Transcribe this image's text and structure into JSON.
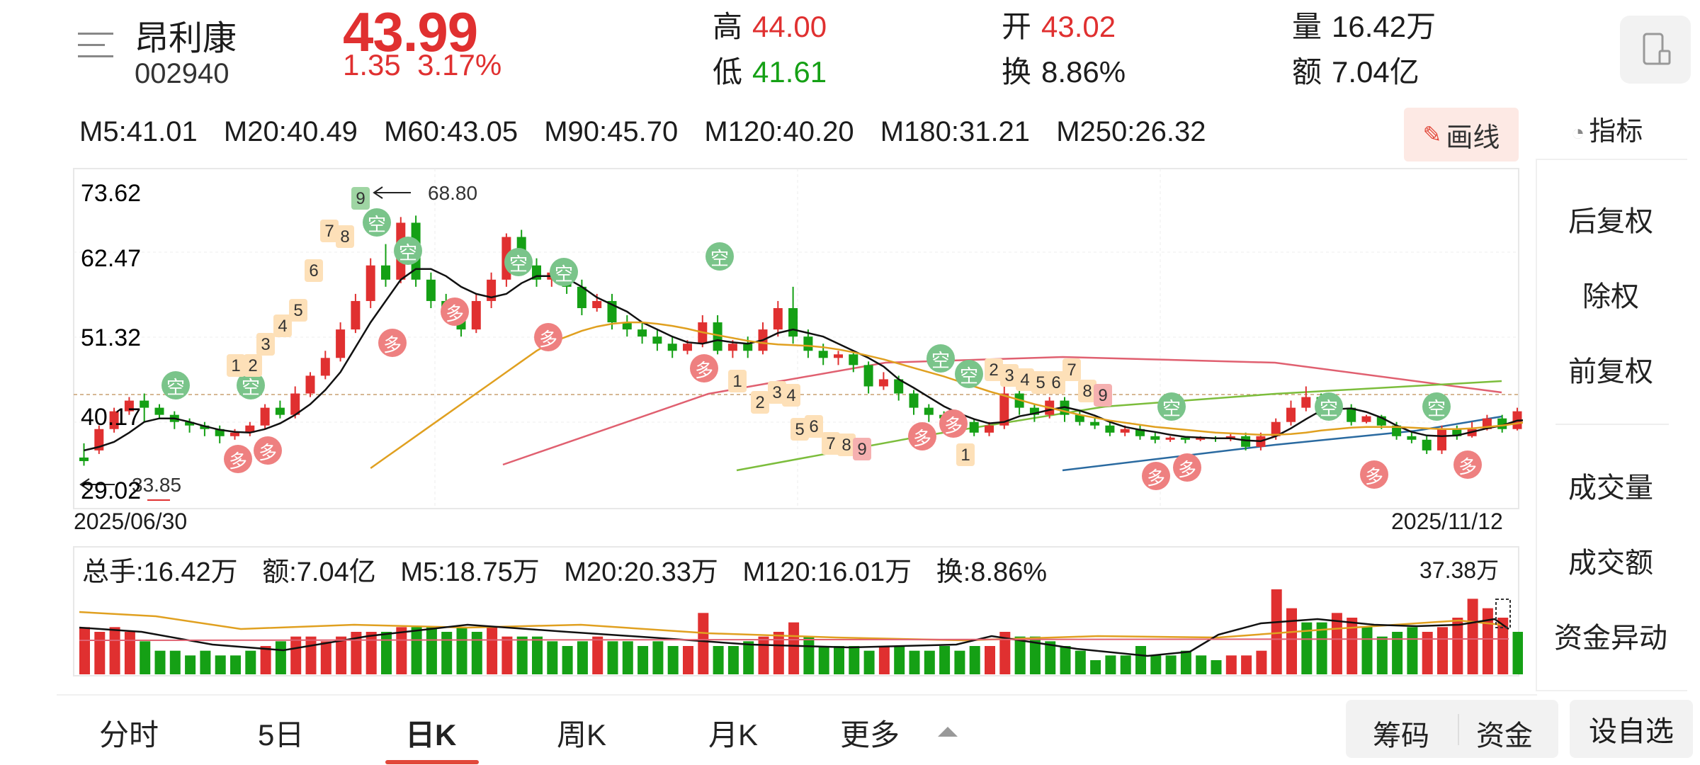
{
  "header": {
    "name": "昂利康",
    "code": "002940",
    "price": "43.99",
    "change": "1.35",
    "change_pct": "3.17%",
    "high_label": "高",
    "high": "44.00",
    "low_label": "低",
    "low": "41.61",
    "open_label": "开",
    "open": "43.02",
    "turnover_label": "换",
    "turnover": "8.86%",
    "volume_label": "量",
    "volume": "16.42万",
    "amount_label": "额",
    "amount": "7.04亿"
  },
  "ma": [
    "M5:41.01",
    "M20:40.49",
    "M60:43.05",
    "M90:45.70",
    "M120:40.20",
    "M180:31.21",
    "M250:26.32"
  ],
  "toolbar": {
    "draw_label": "画线",
    "indicator_label": "指标"
  },
  "side_menu": [
    "后复权",
    "除权",
    "前复权",
    "成交量",
    "成交额",
    "资金异动"
  ],
  "price_axis": [
    "73.62",
    "62.47",
    "51.32",
    "40.17",
    "29.02"
  ],
  "annotations": {
    "high_marker": "68.80",
    "low_marker": "33.85",
    "sell_label": "空",
    "buy_label": "多"
  },
  "dates": {
    "start": "2025/06/30",
    "end": "2025/11/12"
  },
  "volume_panel": {
    "items": [
      "总手:16.42万",
      "额:7.04亿",
      "M5:18.75万",
      "M20:20.33万",
      "M120:16.01万",
      "换:8.86%"
    ],
    "max": "37.38万"
  },
  "tabs": [
    "分时",
    "5日",
    "日K",
    "周K",
    "月K",
    "更多"
  ],
  "active_tab": "日K",
  "bottom_buttons": {
    "chips": "筹码",
    "funds": "资金",
    "watch": "设自选"
  },
  "colors": {
    "up": "#e03030",
    "down": "#15a015",
    "accent": "#e1483a"
  },
  "chart_data": {
    "type": "candlestick",
    "ylim": [
      29.02,
      73.62
    ],
    "candles": [
      [
        35,
        34.5,
        37,
        33.85
      ],
      [
        36,
        39,
        39.5,
        35.5
      ],
      [
        39,
        41.5,
        42,
        38.5
      ],
      [
        41.5,
        43,
        43.5,
        41
      ],
      [
        43,
        42,
        44,
        40
      ],
      [
        42,
        41,
        42.5,
        40.5
      ],
      [
        41,
        40,
        41.5,
        39
      ],
      [
        40,
        39.5,
        40.5,
        38.5
      ],
      [
        39.5,
        39,
        40,
        38
      ],
      [
        39,
        38,
        39.5,
        37
      ],
      [
        38,
        38.5,
        39,
        37.5
      ],
      [
        38.5,
        39.5,
        40,
        38
      ],
      [
        39.5,
        42,
        42.5,
        39
      ],
      [
        42,
        41,
        43,
        40.5
      ],
      [
        41,
        44,
        45,
        40.5
      ],
      [
        44,
        46.5,
        47,
        43.5
      ],
      [
        46.5,
        49,
        50,
        46
      ],
      [
        49,
        53,
        54,
        48.5
      ],
      [
        53,
        57,
        58,
        52.5
      ],
      [
        57,
        62,
        63,
        56
      ],
      [
        62,
        60,
        65,
        59
      ],
      [
        60,
        68,
        68.8,
        59.5
      ],
      [
        68,
        60,
        69,
        59
      ],
      [
        60,
        57,
        61,
        56
      ],
      [
        57,
        56,
        58,
        55
      ],
      [
        56,
        53,
        57,
        52
      ],
      [
        53,
        57,
        58,
        52.5
      ],
      [
        57,
        60,
        61,
        56
      ],
      [
        60,
        66,
        66.5,
        59
      ],
      [
        66,
        62,
        67,
        61
      ],
      [
        62,
        60,
        63,
        59
      ],
      [
        60,
        61,
        61.5,
        59
      ],
      [
        61,
        59,
        62,
        58
      ],
      [
        59,
        56,
        60,
        55
      ],
      [
        56,
        57,
        58,
        55.5
      ],
      [
        57,
        54,
        58,
        53
      ],
      [
        54,
        53,
        55,
        52
      ],
      [
        53,
        52,
        54,
        51
      ],
      [
        52,
        51,
        53,
        50
      ],
      [
        51,
        50,
        52,
        49
      ],
      [
        50,
        51,
        51.5,
        49.5
      ],
      [
        51,
        54,
        55,
        50.5
      ],
      [
        54,
        50,
        55,
        49.5
      ],
      [
        50,
        51,
        51.5,
        49
      ],
      [
        51,
        50,
        52,
        49
      ],
      [
        50,
        53,
        54,
        49.5
      ],
      [
        53,
        56,
        57,
        52
      ],
      [
        56,
        52,
        59,
        51
      ],
      [
        52,
        50,
        53,
        49
      ],
      [
        50,
        49,
        51,
        48
      ],
      [
        49,
        49.5,
        50,
        48
      ],
      [
        49.5,
        48,
        50,
        47
      ],
      [
        48,
        45,
        48.5,
        44
      ],
      [
        45,
        46,
        47,
        44.5
      ],
      [
        46,
        44,
        46.5,
        43
      ],
      [
        44,
        42,
        44.5,
        41
      ],
      [
        42,
        41,
        42.5,
        40
      ],
      [
        41,
        40.5,
        41.5,
        39.5
      ],
      [
        40.5,
        40,
        41,
        39.5
      ],
      [
        40,
        38.5,
        40.5,
        38
      ],
      [
        38.5,
        39.5,
        40,
        38
      ],
      [
        39.5,
        44,
        45,
        39
      ],
      [
        44,
        42,
        44.5,
        41
      ],
      [
        42,
        41,
        42.5,
        40
      ],
      [
        41,
        43,
        43.5,
        40.5
      ],
      [
        43,
        41,
        43.5,
        40
      ],
      [
        41,
        40,
        41.5,
        39.5
      ],
      [
        40,
        39.5,
        40.5,
        39
      ],
      [
        39.5,
        38.5,
        40,
        38
      ],
      [
        38.5,
        39,
        39.5,
        38
      ],
      [
        39,
        38,
        39.5,
        37.5
      ],
      [
        38,
        37.5,
        38.5,
        37
      ],
      [
        37.5,
        37.8,
        38,
        37.2
      ],
      [
        37.8,
        37.5,
        38,
        37
      ],
      [
        37.5,
        37.8,
        38,
        37.3
      ],
      [
        37.8,
        37.6,
        38,
        37.2
      ],
      [
        37.6,
        38,
        38.3,
        37.3
      ],
      [
        38,
        36.5,
        38.5,
        36
      ],
      [
        36.5,
        38,
        38.5,
        36
      ],
      [
        38,
        40,
        40.5,
        37.5
      ],
      [
        40,
        42,
        43,
        39.5
      ],
      [
        42,
        43.5,
        45,
        41.5
      ],
      [
        43.5,
        41,
        44,
        40.5
      ],
      [
        41,
        42,
        42.5,
        40.5
      ],
      [
        42,
        40,
        42.5,
        39.5
      ],
      [
        40,
        40.8,
        41,
        39.8
      ],
      [
        40.8,
        39.5,
        41,
        39
      ],
      [
        39.5,
        38,
        40,
        37.5
      ],
      [
        38,
        37.5,
        38.5,
        37
      ],
      [
        37.5,
        36,
        38,
        35.5
      ],
      [
        36,
        39,
        39.5,
        35.5
      ],
      [
        39,
        38,
        39.5,
        37.5
      ],
      [
        38,
        39,
        40,
        37.8
      ],
      [
        39,
        40.5,
        41,
        38.8
      ],
      [
        40.5,
        39,
        41,
        38.5
      ],
      [
        39,
        41.5,
        42,
        38.8
      ],
      [
        41.5,
        40,
        42,
        39.5
      ],
      [
        40,
        41,
        42,
        39.8
      ],
      [
        41,
        43.99,
        44,
        40.5
      ]
    ],
    "ma_lines": {
      "MA5": [
        36,
        36.5,
        37.2,
        38.5,
        40,
        40.5,
        40.5,
        40,
        39.4,
        38.9,
        38.6,
        38.5,
        39,
        39.8,
        41,
        42.5,
        44.5,
        47,
        50.5,
        54,
        57,
        60,
        61.5,
        61.5,
        60.5,
        59,
        58,
        57.5,
        58,
        59.5,
        60.5,
        60.5,
        60.2,
        59,
        57.5,
        56.5,
        55.5,
        54,
        53,
        52,
        51.2,
        51,
        51.5,
        51.2,
        51,
        51.5,
        52.5,
        53,
        52.5,
        52,
        51,
        50,
        49,
        47.8,
        46,
        44.8,
        43.5,
        42.2,
        41.2,
        40.4,
        39.8,
        40,
        40.8,
        41.2,
        41.7,
        42.1,
        41.6,
        40.9,
        40,
        39.3,
        38.9,
        38.6,
        38.2,
        37.9,
        37.8,
        37.7,
        37.7,
        37.4,
        37.3,
        38,
        39.1,
        40.4,
        41.6,
        41.8,
        41.9,
        41.4,
        40.6,
        39.5,
        38.6,
        38.1,
        38,
        38.1,
        38.6,
        39.1,
        39.5,
        40.2,
        40.3,
        40.6,
        41.01
      ],
      "MA20": [
        null,
        null,
        null,
        null,
        null,
        null,
        null,
        null,
        null,
        null,
        null,
        null,
        null,
        null,
        null,
        null,
        null,
        null,
        null,
        33.5,
        35,
        36.5,
        38,
        39.5,
        41,
        42.5,
        44,
        45.5,
        47,
        48.5,
        50,
        51.2,
        52,
        52.8,
        53.4,
        53.8,
        54,
        54,
        53.8,
        53.5,
        53.1,
        52.6,
        52.2,
        51.8,
        51.4,
        51.1,
        50.9,
        50.8,
        50.7,
        50.5,
        50.2,
        49.8,
        49.3,
        48.8,
        48.2,
        47.6,
        47,
        46.4,
        45.7,
        45,
        44.3,
        43.7,
        43.1,
        42.5,
        42,
        41.5,
        41,
        40.6,
        40.2,
        39.9,
        39.6,
        39.3,
        39.1,
        38.9,
        38.7,
        38.5,
        38.4,
        38.3,
        38.2,
        38.2,
        38.3,
        38.5,
        38.8,
        39,
        39.2,
        39.3,
        39.3,
        39.3,
        39.2,
        39.1,
        39,
        39,
        39.1,
        39.3,
        39.5,
        39.8,
        40.1,
        40.3,
        40.49
      ]
    },
    "volume": [
      [
        10,
        "up"
      ],
      [
        9,
        "up"
      ],
      [
        10,
        "up"
      ],
      [
        9,
        "up"
      ],
      [
        7,
        "down"
      ],
      [
        5,
        "down"
      ],
      [
        5,
        "down"
      ],
      [
        4,
        "down"
      ],
      [
        5,
        "down"
      ],
      [
        4,
        "down"
      ],
      [
        4,
        "down"
      ],
      [
        5,
        "down"
      ],
      [
        6,
        "up"
      ],
      [
        7,
        "down"
      ],
      [
        8,
        "up"
      ],
      [
        8,
        "up"
      ],
      [
        7,
        "up"
      ],
      [
        8,
        "up"
      ],
      [
        9,
        "up"
      ],
      [
        9,
        "up"
      ],
      [
        9,
        "down"
      ],
      [
        10,
        "up"
      ],
      [
        10,
        "down"
      ],
      [
        10,
        "down"
      ],
      [
        9,
        "down"
      ],
      [
        10,
        "down"
      ],
      [
        9,
        "down"
      ],
      [
        10,
        "up"
      ],
      [
        8,
        "up"
      ],
      [
        8,
        "down"
      ],
      [
        8,
        "down"
      ],
      [
        7,
        "down"
      ],
      [
        6,
        "down"
      ],
      [
        7,
        "down"
      ],
      [
        8,
        "up"
      ],
      [
        7,
        "down"
      ],
      [
        7,
        "down"
      ],
      [
        6,
        "down"
      ],
      [
        7,
        "down"
      ],
      [
        6,
        "down"
      ],
      [
        6,
        "up"
      ],
      [
        13,
        "up"
      ],
      [
        6,
        "down"
      ],
      [
        6,
        "down"
      ],
      [
        7,
        "down"
      ],
      [
        8,
        "up"
      ],
      [
        9,
        "up"
      ],
      [
        11,
        "up"
      ],
      [
        8,
        "down"
      ],
      [
        6,
        "down"
      ],
      [
        6,
        "down"
      ],
      [
        6,
        "down"
      ],
      [
        5,
        "down"
      ],
      [
        6,
        "up"
      ],
      [
        6,
        "down"
      ],
      [
        5,
        "down"
      ],
      [
        5,
        "down"
      ],
      [
        6,
        "down"
      ],
      [
        5,
        "down"
      ],
      [
        6,
        "down"
      ],
      [
        6,
        "up"
      ],
      [
        9,
        "up"
      ],
      [
        8,
        "down"
      ],
      [
        8,
        "down"
      ],
      [
        7,
        "down"
      ],
      [
        6,
        "down"
      ],
      [
        5,
        "down"
      ],
      [
        3,
        "down"
      ],
      [
        4,
        "down"
      ],
      [
        4,
        "down"
      ],
      [
        6,
        "down"
      ],
      [
        4,
        "down"
      ],
      [
        4,
        "down"
      ],
      [
        5,
        "down"
      ],
      [
        4,
        "down"
      ],
      [
        3,
        "down"
      ],
      [
        4,
        "up"
      ],
      [
        4,
        "up"
      ],
      [
        5,
        "up"
      ],
      [
        18,
        "up"
      ],
      [
        14,
        "up"
      ],
      [
        11,
        "down"
      ],
      [
        11,
        "down"
      ],
      [
        13,
        "up"
      ],
      [
        12,
        "up"
      ],
      [
        10,
        "down"
      ],
      [
        8,
        "down"
      ],
      [
        9,
        "down"
      ],
      [
        10,
        "down"
      ],
      [
        9,
        "up"
      ],
      [
        10,
        "up"
      ],
      [
        12,
        "up"
      ],
      [
        16,
        "up"
      ],
      [
        14,
        "up"
      ],
      [
        12,
        "up"
      ],
      [
        9,
        "down"
      ],
      [
        9,
        "down"
      ],
      [
        18,
        "up"
      ],
      [
        10,
        "up"
      ]
    ]
  }
}
